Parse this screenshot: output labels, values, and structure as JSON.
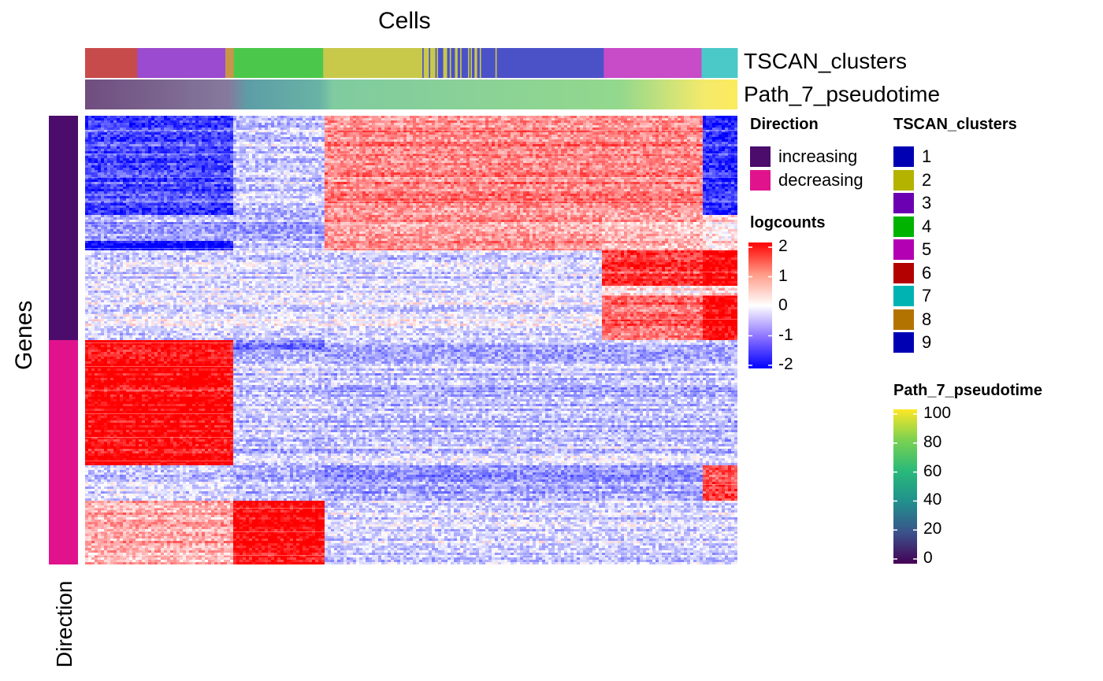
{
  "chart_data": {
    "type": "heatmap",
    "column_title": "Cells",
    "row_title": "Genes",
    "row_annotation_axis_label": "Direction",
    "top_annotations": [
      {
        "name": "TSCAN_clusters",
        "segments": [
          {
            "cluster": "6",
            "from": 0.0,
            "to": 0.08
          },
          {
            "cluster": "3",
            "from": 0.08,
            "to": 0.215
          },
          {
            "cluster": "8",
            "from": 0.215,
            "to": 0.228
          },
          {
            "cluster": "4",
            "from": 0.228,
            "to": 0.365
          },
          {
            "cluster": "2",
            "from": 0.365,
            "to": 0.515
          },
          {
            "cluster": "mix-2-1",
            "from": 0.515,
            "to": 0.635
          },
          {
            "cluster": "1",
            "from": 0.635,
            "to": 0.795
          },
          {
            "cluster": "5",
            "from": 0.795,
            "to": 0.945
          },
          {
            "cluster": "7",
            "from": 0.945,
            "to": 1.0
          }
        ]
      },
      {
        "name": "Path_7_pseudotime",
        "range": [
          0,
          100
        ]
      }
    ],
    "row_groups": [
      {
        "direction": "increasing",
        "fraction": 0.5
      },
      {
        "direction": "decreasing",
        "fraction": 0.5
      }
    ],
    "legends": {
      "direction": {
        "title": "Direction",
        "items": [
          {
            "label": "increasing",
            "color": "#4b0c6b"
          },
          {
            "label": "decreasing",
            "color": "#e0138c"
          }
        ]
      },
      "logcounts": {
        "title": "logcounts",
        "ticks": [
          "2",
          "1",
          "0",
          "-1",
          "-2"
        ],
        "colors": {
          "low": "#0000ff",
          "mid": "#ffffff",
          "high": "#ff0000"
        }
      },
      "tscan": {
        "title": "TSCAN_clusters",
        "items": [
          {
            "label": "1",
            "color": "#0000b3"
          },
          {
            "label": "2",
            "color": "#b3b300"
          },
          {
            "label": "3",
            "color": "#6b00b3"
          },
          {
            "label": "4",
            "color": "#00b300"
          },
          {
            "label": "5",
            "color": "#b300b3"
          },
          {
            "label": "6",
            "color": "#b30000"
          },
          {
            "label": "7",
            "color": "#00b3b3"
          },
          {
            "label": "8",
            "color": "#b37300"
          },
          {
            "label": "9",
            "color": "#0000b3"
          }
        ]
      },
      "pseudotime": {
        "title": "Path_7_pseudotime",
        "ticks": [
          "100",
          "80",
          "60",
          "40",
          "20",
          "0"
        ]
      }
    },
    "column_blocks": [
      {
        "name": "block-a",
        "from": 0.0,
        "to": 0.228
      },
      {
        "name": "block-b",
        "from": 0.228,
        "to": 0.365
      },
      {
        "name": "block-c",
        "from": 0.365,
        "to": 0.79
      },
      {
        "name": "block-d",
        "from": 0.79,
        "to": 0.945
      },
      {
        "name": "block-e",
        "from": 0.945,
        "to": 1.0
      }
    ],
    "row_bands": [
      {
        "name": "inc-1",
        "from": 0.0,
        "to": 0.22,
        "levels": [
          -1.4,
          -0.4,
          1.0,
          1.0,
          -1.6
        ]
      },
      {
        "name": "inc-2",
        "from": 0.22,
        "to": 0.28,
        "levels": [
          -0.6,
          -0.6,
          0.9,
          0.7,
          0.3
        ]
      },
      {
        "name": "inc-3",
        "from": 0.28,
        "to": 0.3,
        "levels": [
          -2.0,
          -0.5,
          0.9,
          0.6,
          0.3
        ]
      },
      {
        "name": "inc-4",
        "from": 0.3,
        "to": 0.38,
        "levels": [
          -0.3,
          -0.3,
          -0.3,
          1.6,
          2.0
        ]
      },
      {
        "name": "inc-5",
        "from": 0.38,
        "to": 0.4,
        "levels": [
          -0.3,
          -0.3,
          -0.3,
          0.2,
          0.4
        ]
      },
      {
        "name": "inc-6",
        "from": 0.4,
        "to": 0.5,
        "levels": [
          -0.2,
          -0.2,
          -0.2,
          1.2,
          2.0
        ]
      },
      {
        "name": "dec-1",
        "from": 0.5,
        "to": 0.52,
        "levels": [
          2.0,
          -1.1,
          -0.6,
          -0.5,
          -0.6
        ]
      },
      {
        "name": "dec-2",
        "from": 0.52,
        "to": 0.72,
        "levels": [
          2.0,
          -0.4,
          -0.5,
          -0.5,
          -0.5
        ]
      },
      {
        "name": "dec-3",
        "from": 0.72,
        "to": 0.78,
        "levels": [
          1.9,
          -0.5,
          -0.4,
          -0.4,
          -0.5
        ]
      },
      {
        "name": "dec-4",
        "from": 0.78,
        "to": 0.86,
        "levels": [
          -0.4,
          -0.6,
          -0.8,
          -0.8,
          1.4
        ]
      },
      {
        "name": "dec-5",
        "from": 0.86,
        "to": 1.0,
        "levels": [
          0.7,
          2.0,
          -0.3,
          -0.3,
          -0.3
        ]
      }
    ]
  }
}
